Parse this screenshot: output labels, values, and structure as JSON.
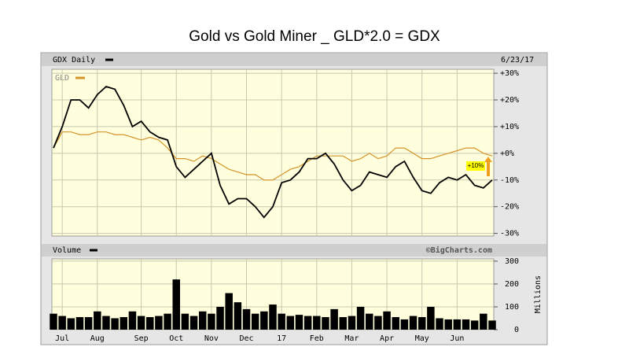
{
  "chart_data": [
    {
      "type": "line",
      "title": "Gold vs Gold Miner _ GLD*2.0 = GDX",
      "date": "6/23/17",
      "annotation": "+10%",
      "ylim": [
        -31,
        31.5
      ],
      "yticks": [
        {
          "value": 30,
          "label": "+30%"
        },
        {
          "value": 20,
          "label": "+20%"
        },
        {
          "value": 10,
          "label": "+10%"
        },
        {
          "value": 0,
          "label": "+0%"
        },
        {
          "value": -10,
          "label": "-10%"
        },
        {
          "value": -20,
          "label": "-20%"
        },
        {
          "value": -30,
          "label": "-30%"
        }
      ],
      "grid": true,
      "series": [
        {
          "name": "GDX Daily",
          "color": "#000000",
          "values": [
            2,
            10,
            20,
            20,
            17,
            22,
            25,
            24,
            18,
            10,
            12,
            8,
            6,
            5,
            -5,
            -9,
            -6,
            -3,
            0,
            -12,
            -19,
            -17,
            -17,
            -20,
            -24,
            -20,
            -11,
            -10,
            -7,
            -2,
            -2,
            0,
            -4,
            -10,
            -14,
            -12,
            -7,
            -8,
            -9,
            -5,
            -3,
            -9,
            -14,
            -15,
            -11,
            -9,
            -10,
            -8,
            -12,
            -13,
            -10
          ]
        },
        {
          "name": "GLD",
          "color": "#d4942a",
          "values": [
            2,
            8,
            8,
            7,
            7,
            8,
            8,
            7,
            7,
            6,
            5,
            6,
            5,
            2,
            -2,
            -2,
            -3,
            -1,
            -2,
            -4,
            -6,
            -7,
            -8,
            -8,
            -10,
            -10,
            -8,
            -6,
            -5,
            -3,
            -1,
            -1,
            -1,
            -1,
            -3,
            -2,
            0,
            -2,
            -1,
            2,
            2,
            0,
            -2,
            -2,
            -1,
            0,
            1,
            2,
            2,
            0,
            -1
          ]
        }
      ]
    },
    {
      "type": "bar",
      "name": "Volume",
      "source": "©BigCharts.com",
      "y_label": "Millions",
      "color": "#000000",
      "categories": [
        null,
        "Jul",
        null,
        null,
        null,
        "Aug",
        null,
        null,
        null,
        null,
        "Sep",
        null,
        null,
        null,
        "Oct",
        null,
        null,
        null,
        "Nov",
        null,
        null,
        null,
        "Dec",
        null,
        null,
        null,
        "17",
        null,
        null,
        null,
        "Feb",
        null,
        null,
        null,
        "Mar",
        null,
        null,
        null,
        "Apr",
        null,
        null,
        null,
        "May",
        null,
        null,
        null,
        "Jun",
        null,
        null,
        null,
        null
      ],
      "values": [
        70,
        60,
        50,
        55,
        55,
        80,
        60,
        50,
        55,
        80,
        60,
        55,
        60,
        70,
        220,
        70,
        60,
        80,
        70,
        100,
        160,
        120,
        90,
        70,
        80,
        110,
        70,
        60,
        65,
        60,
        60,
        55,
        90,
        55,
        60,
        100,
        70,
        60,
        80,
        55,
        45,
        60,
        55,
        100,
        50,
        45,
        45,
        45,
        40,
        70,
        40
      ],
      "ylim": [
        0,
        310
      ],
      "yticks": [
        0,
        100,
        200,
        300
      ]
    }
  ]
}
